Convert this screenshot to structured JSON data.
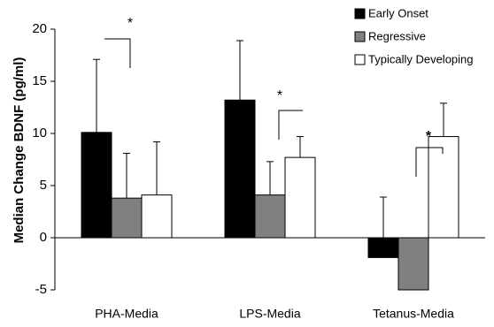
{
  "chart_data": {
    "type": "bar",
    "y_label": "Median Change BDNF (pg/ml)",
    "categories": [
      "PHA-Media",
      "LPS-Media",
      "Tetanus-Media"
    ],
    "series": [
      {
        "name": "Early Onset",
        "color": "#000000",
        "values": [
          10.1,
          13.2,
          -1.9
        ],
        "errors": [
          7.0,
          5.7,
          5.8
        ]
      },
      {
        "name": "Regressive",
        "color": "#808080",
        "values": [
          3.8,
          4.1,
          -5
        ],
        "errors": [
          4.3,
          3.2,
          null
        ]
      },
      {
        "name": "Typically Developing",
        "color": "#ffffff",
        "values": [
          4.1,
          7.7,
          9.7
        ],
        "errors": [
          5.1,
          2.0,
          3.2
        ]
      }
    ],
    "annotations": [
      {
        "text": "*"
      },
      {
        "text": "*"
      },
      {
        "text": "*"
      }
    ],
    "ylim": [
      -5,
      20
    ],
    "yticks": [
      -5,
      0,
      5,
      10,
      15,
      20
    ],
    "legend": "upper right",
    "grid": false
  }
}
